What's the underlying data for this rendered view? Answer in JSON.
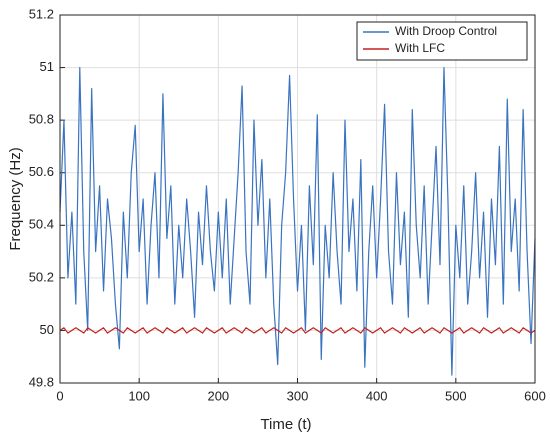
{
  "chart_data": {
    "type": "line",
    "xlabel": "Time (t)",
    "ylabel": "Frequency (Hz)",
    "x": [
      0,
      5,
      10,
      15,
      20,
      25,
      30,
      35,
      40,
      45,
      50,
      55,
      60,
      65,
      70,
      75,
      80,
      85,
      90,
      95,
      100,
      105,
      110,
      115,
      120,
      125,
      130,
      135,
      140,
      145,
      150,
      155,
      160,
      165,
      170,
      175,
      180,
      185,
      190,
      195,
      200,
      205,
      210,
      215,
      220,
      225,
      230,
      235,
      240,
      245,
      250,
      255,
      260,
      265,
      270,
      275,
      280,
      285,
      290,
      295,
      300,
      305,
      310,
      315,
      320,
      325,
      330,
      335,
      340,
      345,
      350,
      355,
      360,
      365,
      370,
      375,
      380,
      385,
      390,
      395,
      400,
      405,
      410,
      415,
      420,
      425,
      430,
      435,
      440,
      445,
      450,
      455,
      460,
      465,
      470,
      475,
      480,
      485,
      490,
      495,
      500,
      505,
      510,
      515,
      520,
      525,
      530,
      535,
      540,
      545,
      550,
      555,
      560,
      565,
      570,
      575,
      580,
      585,
      590,
      595,
      600
    ],
    "series": [
      {
        "name": "With Droop Control",
        "color": "#3a73c0",
        "values": [
          50.45,
          50.8,
          50.2,
          50.45,
          50.1,
          51.0,
          50.3,
          50.0,
          50.92,
          50.3,
          50.55,
          50.15,
          50.5,
          50.35,
          50.1,
          49.93,
          50.45,
          50.2,
          50.6,
          50.78,
          50.3,
          50.5,
          50.1,
          50.4,
          50.6,
          50.2,
          50.9,
          50.35,
          50.55,
          50.1,
          50.4,
          50.2,
          50.5,
          50.3,
          50.05,
          50.45,
          50.25,
          50.55,
          50.3,
          50.15,
          50.45,
          50.2,
          50.5,
          50.1,
          50.35,
          50.6,
          50.93,
          50.3,
          50.1,
          50.8,
          50.4,
          50.65,
          50.2,
          50.5,
          50.1,
          49.87,
          50.4,
          50.6,
          50.97,
          50.5,
          50.15,
          50.4,
          50.0,
          50.55,
          50.25,
          50.82,
          49.89,
          50.4,
          50.2,
          50.6,
          50.3,
          50.1,
          50.8,
          50.3,
          50.5,
          50.15,
          50.65,
          49.86,
          50.3,
          50.55,
          50.2,
          50.5,
          50.86,
          50.3,
          50.1,
          50.6,
          50.25,
          50.45,
          50.05,
          50.84,
          50.4,
          50.2,
          50.55,
          50.1,
          50.4,
          50.7,
          50.25,
          51.0,
          50.5,
          49.83,
          50.4,
          50.2,
          50.55,
          50.1,
          50.3,
          50.6,
          50.2,
          50.45,
          50.05,
          50.5,
          50.25,
          50.7,
          50.1,
          50.88,
          50.3,
          50.5,
          50.15,
          50.84,
          50.3,
          49.95,
          50.35
        ]
      },
      {
        "name": "With LFC",
        "color": "#c0201f",
        "values": [
          50,
          50.01,
          49.99,
          50,
          50.01,
          50,
          49.99,
          50.01,
          50,
          49.99,
          50,
          50.01,
          49.99,
          50,
          50.01,
          50,
          49.99,
          50.01,
          50,
          49.99,
          50,
          50.01,
          49.99,
          50,
          50.01,
          50,
          49.99,
          50.01,
          50,
          49.99,
          50,
          50.01,
          49.99,
          50,
          50.01,
          50,
          49.99,
          50.01,
          50,
          49.99,
          50,
          50.01,
          49.99,
          50,
          50.01,
          50,
          49.99,
          50.01,
          50,
          49.99,
          50,
          50.01,
          49.99,
          50,
          50.01,
          50,
          49.99,
          50.01,
          50,
          49.99,
          50,
          50.01,
          49.99,
          50,
          50.01,
          50,
          49.99,
          50.01,
          50,
          49.99,
          50,
          50.01,
          49.99,
          50,
          50.01,
          50,
          49.99,
          50.01,
          50,
          49.99,
          50,
          50.01,
          49.99,
          50,
          50.01,
          50,
          49.99,
          50.01,
          50,
          49.99,
          50,
          50.01,
          49.99,
          50,
          50.01,
          50,
          49.99,
          50.01,
          50,
          49.99,
          50,
          50.01,
          49.99,
          50,
          50.01,
          50,
          49.99,
          50.01,
          50,
          49.99,
          50,
          50.01,
          49.99,
          50,
          50.01,
          50,
          49.99,
          50.01,
          50,
          49.99,
          50
        ]
      }
    ],
    "xlim": [
      0,
      600
    ],
    "xticks": [
      0,
      100,
      200,
      300,
      400,
      500,
      600
    ],
    "ylim": [
      49.8,
      51.2
    ],
    "yticks": [
      49.8,
      50,
      50.2,
      50.4,
      50.6,
      50.8,
      51,
      51.2
    ],
    "grid": true,
    "legend": "upper right"
  }
}
